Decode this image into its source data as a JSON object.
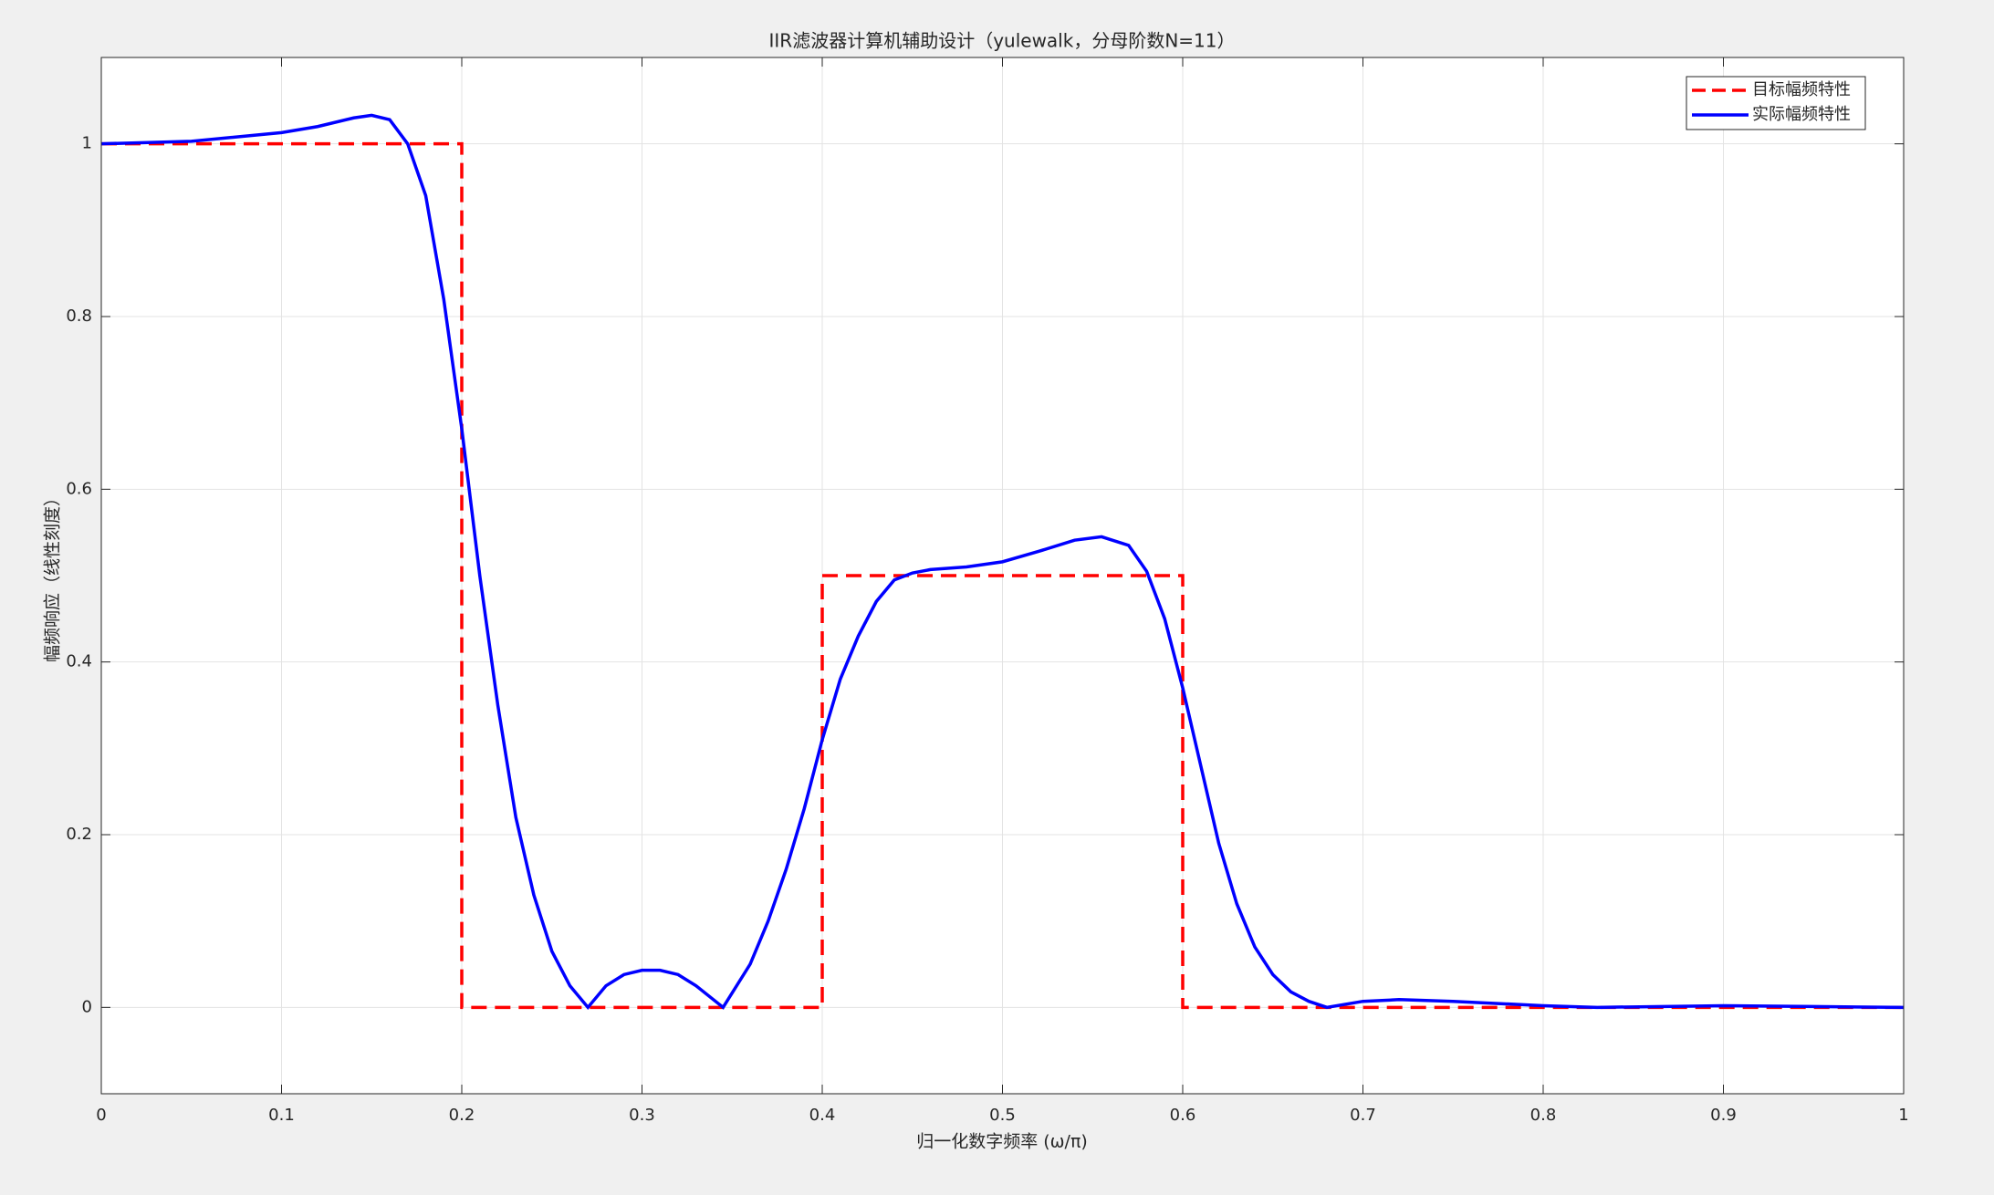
{
  "chart_data": {
    "type": "line",
    "title": "IIR滤波器计算机辅助设计（yulewalk，分母阶数N=11）",
    "xlabel": "归一化数字频率 (ω/π)",
    "ylabel": "幅频响应（线性刻度）",
    "xlim": [
      0,
      1
    ],
    "ylim": [
      -0.1,
      1.1
    ],
    "xticks": [
      0,
      0.1,
      0.2,
      0.3,
      0.4,
      0.5,
      0.6,
      0.7,
      0.8,
      0.9,
      1
    ],
    "yticks": [
      0,
      0.2,
      0.4,
      0.6,
      0.8,
      1
    ],
    "grid": true,
    "legend": "upper right",
    "series": [
      {
        "name": "目标幅频特性",
        "color": "#ff0000",
        "linestyle": "dashed",
        "x": [
          0,
          0.2,
          0.2,
          0.4,
          0.4,
          0.6,
          0.6,
          1
        ],
        "values": [
          1,
          1,
          0,
          0,
          0.5,
          0.5,
          0,
          0
        ]
      },
      {
        "name": "实际幅频特性",
        "color": "#0000ff",
        "linestyle": "solid",
        "x": [
          0,
          0.05,
          0.1,
          0.12,
          0.14,
          0.15,
          0.16,
          0.17,
          0.18,
          0.19,
          0.2,
          0.21,
          0.22,
          0.23,
          0.24,
          0.25,
          0.26,
          0.27,
          0.28,
          0.29,
          0.3,
          0.31,
          0.32,
          0.33,
          0.345,
          0.36,
          0.37,
          0.38,
          0.39,
          0.4,
          0.41,
          0.42,
          0.43,
          0.44,
          0.45,
          0.46,
          0.48,
          0.5,
          0.52,
          0.54,
          0.555,
          0.57,
          0.58,
          0.59,
          0.6,
          0.61,
          0.62,
          0.63,
          0.64,
          0.65,
          0.66,
          0.67,
          0.68,
          0.7,
          0.72,
          0.75,
          0.8,
          0.83,
          0.9,
          0.95,
          1
        ],
        "values": [
          1,
          1.003,
          1.013,
          1.02,
          1.03,
          1.033,
          1.028,
          1,
          0.94,
          0.82,
          0.67,
          0.5,
          0.35,
          0.22,
          0.13,
          0.065,
          0.025,
          0,
          0.025,
          0.038,
          0.043,
          0.043,
          0.038,
          0.025,
          0,
          0.05,
          0.1,
          0.16,
          0.23,
          0.31,
          0.38,
          0.43,
          0.47,
          0.495,
          0.503,
          0.507,
          0.51,
          0.516,
          0.528,
          0.541,
          0.545,
          0.535,
          0.505,
          0.45,
          0.37,
          0.28,
          0.19,
          0.12,
          0.07,
          0.038,
          0.018,
          0.007,
          0,
          0.007,
          0.009,
          0.007,
          0.002,
          0,
          0.002,
          0.001,
          0
        ]
      }
    ]
  }
}
